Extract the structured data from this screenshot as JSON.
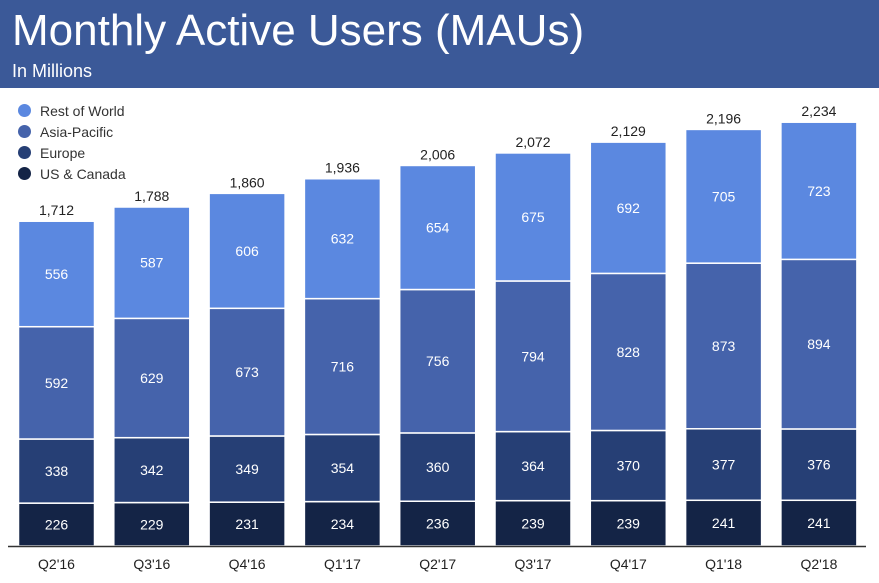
{
  "header": {
    "title": "Monthly Active Users (MAUs)",
    "subtitle": "In Millions",
    "background_color": "#3b5998"
  },
  "chart_data": {
    "type": "bar",
    "stacked": true,
    "title": "Monthly Active Users (MAUs)",
    "subtitle": "In Millions",
    "xlabel": "",
    "ylabel": "",
    "ylim": [
      0,
      2300
    ],
    "legend_position": "top-left",
    "categories": [
      "Q2'16",
      "Q3'16",
      "Q4'16",
      "Q1'17",
      "Q2'17",
      "Q3'17",
      "Q4'17",
      "Q1'18",
      "Q2'18"
    ],
    "series": [
      {
        "name": "US & Canada",
        "color": "#142446",
        "values": [
          226,
          229,
          231,
          234,
          236,
          239,
          239,
          241,
          241
        ]
      },
      {
        "name": "Europe",
        "color": "#263f75",
        "values": [
          338,
          342,
          349,
          354,
          360,
          364,
          370,
          377,
          376
        ]
      },
      {
        "name": "Asia-Pacific",
        "color": "#4563ab",
        "values": [
          592,
          629,
          673,
          716,
          756,
          794,
          828,
          873,
          894
        ]
      },
      {
        "name": "Rest of World",
        "color": "#5b88e0",
        "values": [
          556,
          587,
          606,
          632,
          654,
          675,
          692,
          705,
          723
        ]
      }
    ],
    "totals": [
      "1,712",
      "1,788",
      "1,860",
      "1,936",
      "2,006",
      "2,072",
      "2,129",
      "2,196",
      "2,234"
    ],
    "legend_order": [
      "Rest of World",
      "Asia-Pacific",
      "Europe",
      "US & Canada"
    ]
  }
}
